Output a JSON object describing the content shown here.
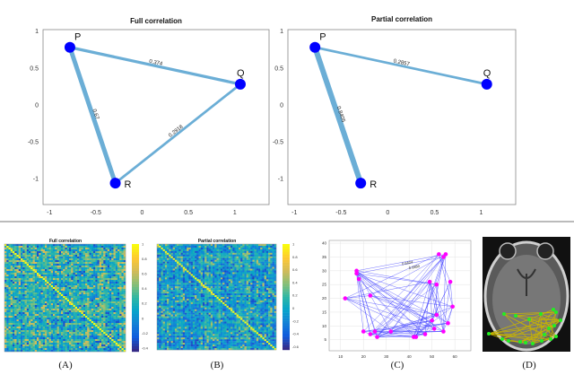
{
  "chart_data": [
    {
      "type": "network",
      "title": "Full correlation",
      "xlim": [
        -1.07,
        1.37
      ],
      "ylim": [
        -1.35,
        1.02
      ],
      "xticks": [
        "-1",
        "-0.5",
        "0",
        "0.5",
        "1"
      ],
      "yticks": [
        "1",
        "0.5",
        "0",
        "-0.5",
        "-1"
      ],
      "nodes": [
        {
          "label": "P",
          "x": -0.78,
          "y": 0.78
        },
        {
          "label": "Q",
          "x": 1.06,
          "y": 0.28
        },
        {
          "label": "R",
          "x": -0.29,
          "y": -1.06
        }
      ],
      "edges": [
        {
          "from": "P",
          "to": "Q",
          "weight": "0.374",
          "value": 0.374
        },
        {
          "from": "P",
          "to": "R",
          "weight": "0.67",
          "value": 0.67
        },
        {
          "from": "Q",
          "to": "R",
          "weight": "0.2918",
          "value": 0.2918
        }
      ],
      "node_color": "#0000ff",
      "edge_color": "#6baed6"
    },
    {
      "type": "network",
      "title": "Partial correlation",
      "xlim": [
        -1.07,
        1.37
      ],
      "ylim": [
        -1.35,
        1.02
      ],
      "xticks": [
        "-1",
        "-0.5",
        "0",
        "0.5",
        "1"
      ],
      "yticks": [
        "1",
        "0.5",
        "0",
        "-0.5",
        "-1"
      ],
      "nodes": [
        {
          "label": "P",
          "x": -0.78,
          "y": 0.78
        },
        {
          "label": "Q",
          "x": 1.06,
          "y": 0.28
        },
        {
          "label": "R",
          "x": -0.29,
          "y": -1.06
        }
      ],
      "edges": [
        {
          "from": "P",
          "to": "Q",
          "weight": "0.2857",
          "value": 0.2857
        },
        {
          "from": "P",
          "to": "R",
          "weight": "0.8405",
          "value": 0.8405
        }
      ],
      "node_color": "#0000ff",
      "edge_color": "#6baed6"
    },
    {
      "type": "heatmap",
      "title": "Full correlation",
      "panel_label": "(A)",
      "clim": [
        -0.45,
        1
      ],
      "colorbar_ticks": [
        "1",
        "0.8",
        "0.6",
        "0.4",
        "0.2",
        "0",
        "-0.2",
        "-0.4"
      ],
      "colormap": "parula"
    },
    {
      "type": "heatmap",
      "title": "Partial correlation",
      "panel_label": "(B)",
      "clim": [
        -0.65,
        1
      ],
      "colorbar_ticks": [
        "1",
        "0.8",
        "0.6",
        "0.4",
        "0.2",
        "0",
        "-0.2",
        "-0.4",
        "-0.6"
      ],
      "colormap": "parula"
    },
    {
      "type": "scatter",
      "panel_label": "(C)",
      "xlim": [
        5,
        67
      ],
      "ylim": [
        1,
        41
      ],
      "xticks": [
        "10",
        "20",
        "30",
        "40",
        "50",
        "60"
      ],
      "yticks": [
        "40",
        "35",
        "30",
        "25",
        "20",
        "15",
        "10",
        "5"
      ],
      "grid": true,
      "points": [
        [
          12,
          20
        ],
        [
          17,
          30
        ],
        [
          17,
          29
        ],
        [
          18,
          27
        ],
        [
          20,
          8
        ],
        [
          23,
          7
        ],
        [
          23,
          21
        ],
        [
          25,
          8
        ],
        [
          26,
          6
        ],
        [
          32,
          8
        ],
        [
          42,
          6
        ],
        [
          43,
          6
        ],
        [
          47,
          7
        ],
        [
          49,
          26
        ],
        [
          50,
          12
        ],
        [
          51,
          9
        ],
        [
          52,
          25
        ],
        [
          52,
          14
        ],
        [
          53,
          36
        ],
        [
          55,
          35
        ],
        [
          56,
          36
        ],
        [
          58,
          26
        ],
        [
          59,
          17
        ],
        [
          57,
          11
        ],
        [
          55,
          8
        ]
      ],
      "edge_labels": [
        "0.5624",
        "0.6880"
      ],
      "node_color": "#ff00ff",
      "edge_color": "#3333ff"
    }
  ],
  "panels": {
    "c_label": "(C)",
    "d_label": "(D)"
  }
}
